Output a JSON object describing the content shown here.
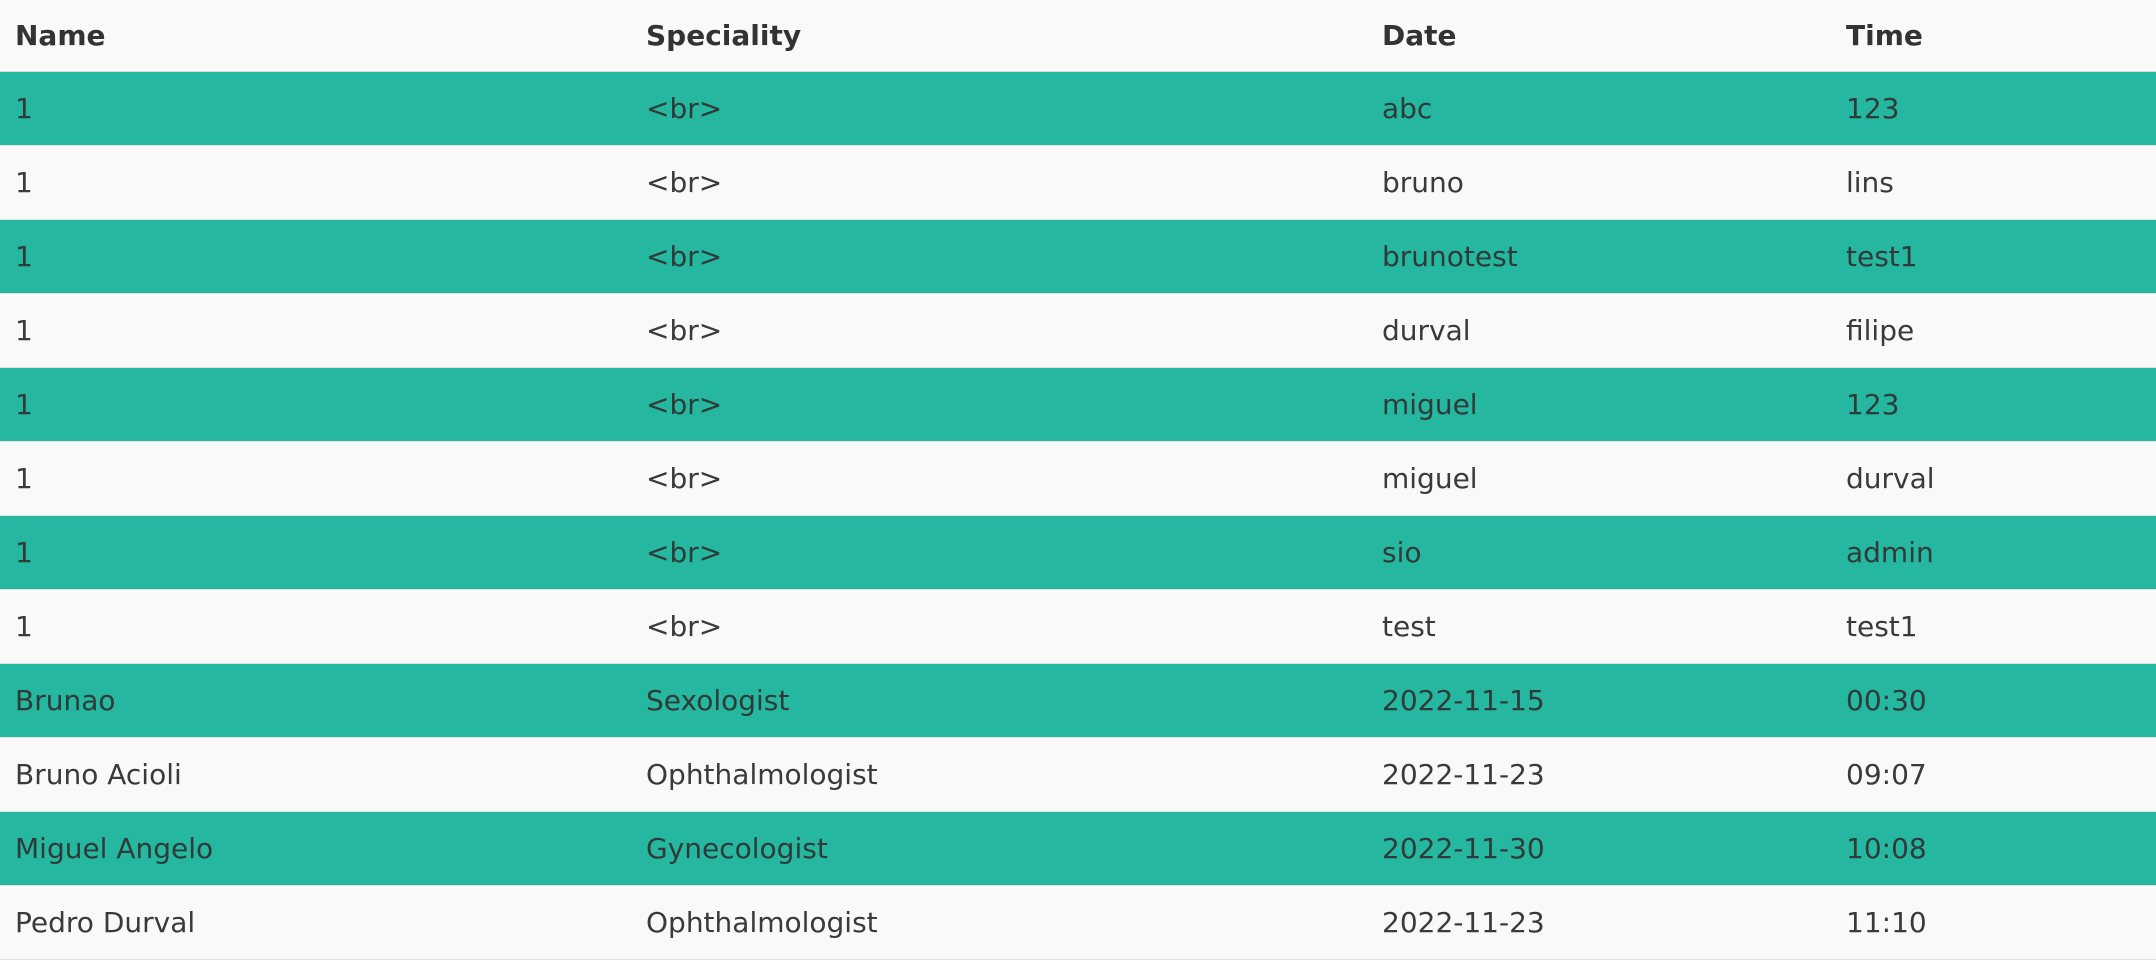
{
  "colors": {
    "row_accent": "#25b79f",
    "row_plain": "#f9f9f9",
    "text": "#3a3a3a"
  },
  "table": {
    "headers": {
      "name": "Name",
      "speciality": "Speciality",
      "date": "Date",
      "time": "Time"
    },
    "rows": [
      {
        "name": "1",
        "speciality": "<br>",
        "date": "abc",
        "time": "123"
      },
      {
        "name": "1",
        "speciality": "<br>",
        "date": "bruno",
        "time": "lins"
      },
      {
        "name": "1",
        "speciality": "<br>",
        "date": "brunotest",
        "time": "test1"
      },
      {
        "name": "1",
        "speciality": "<br>",
        "date": "durval",
        "time": "filipe"
      },
      {
        "name": "1",
        "speciality": "<br>",
        "date": "miguel",
        "time": "123"
      },
      {
        "name": "1",
        "speciality": "<br>",
        "date": "miguel",
        "time": "durval"
      },
      {
        "name": "1",
        "speciality": "<br>",
        "date": "sio",
        "time": "admin"
      },
      {
        "name": "1",
        "speciality": "<br>",
        "date": "test",
        "time": "test1"
      },
      {
        "name": "Brunao",
        "speciality": "Sexologist",
        "date": "2022-11-15",
        "time": "00:30"
      },
      {
        "name": "Bruno Acioli",
        "speciality": "Ophthalmologist",
        "date": "2022-11-23",
        "time": "09:07"
      },
      {
        "name": "Miguel Angelo",
        "speciality": "Gynecologist",
        "date": "2022-11-30",
        "time": "10:08"
      },
      {
        "name": "Pedro Durval",
        "speciality": "Ophthalmologist",
        "date": "2022-11-23",
        "time": "11:10"
      }
    ]
  }
}
